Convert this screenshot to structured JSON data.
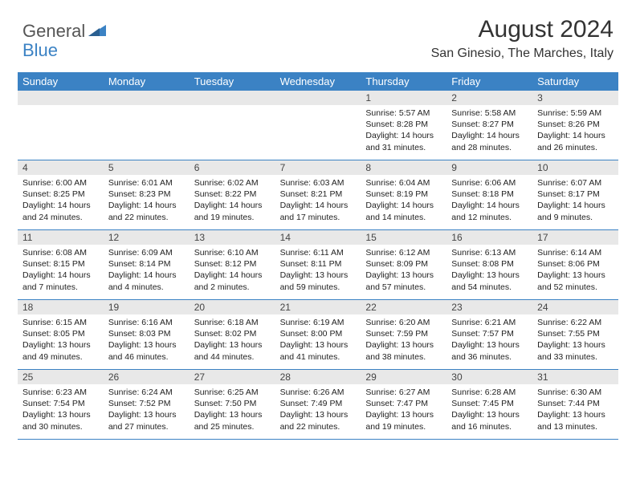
{
  "logo": {
    "general": "General",
    "blue": "Blue"
  },
  "title": "August 2024",
  "location": "San Ginesio, The Marches, Italy",
  "colors": {
    "header_bg": "#3b82c4",
    "daynum_bg": "#e8e8e8",
    "border": "#3b82c4",
    "text": "#222222",
    "title_text": "#333333"
  },
  "weekdays": [
    "Sunday",
    "Monday",
    "Tuesday",
    "Wednesday",
    "Thursday",
    "Friday",
    "Saturday"
  ],
  "weeks": [
    [
      {
        "n": "",
        "sr": "",
        "ss": "",
        "dl": ""
      },
      {
        "n": "",
        "sr": "",
        "ss": "",
        "dl": ""
      },
      {
        "n": "",
        "sr": "",
        "ss": "",
        "dl": ""
      },
      {
        "n": "",
        "sr": "",
        "ss": "",
        "dl": ""
      },
      {
        "n": "1",
        "sr": "Sunrise: 5:57 AM",
        "ss": "Sunset: 8:28 PM",
        "dl": "Daylight: 14 hours and 31 minutes."
      },
      {
        "n": "2",
        "sr": "Sunrise: 5:58 AM",
        "ss": "Sunset: 8:27 PM",
        "dl": "Daylight: 14 hours and 28 minutes."
      },
      {
        "n": "3",
        "sr": "Sunrise: 5:59 AM",
        "ss": "Sunset: 8:26 PM",
        "dl": "Daylight: 14 hours and 26 minutes."
      }
    ],
    [
      {
        "n": "4",
        "sr": "Sunrise: 6:00 AM",
        "ss": "Sunset: 8:25 PM",
        "dl": "Daylight: 14 hours and 24 minutes."
      },
      {
        "n": "5",
        "sr": "Sunrise: 6:01 AM",
        "ss": "Sunset: 8:23 PM",
        "dl": "Daylight: 14 hours and 22 minutes."
      },
      {
        "n": "6",
        "sr": "Sunrise: 6:02 AM",
        "ss": "Sunset: 8:22 PM",
        "dl": "Daylight: 14 hours and 19 minutes."
      },
      {
        "n": "7",
        "sr": "Sunrise: 6:03 AM",
        "ss": "Sunset: 8:21 PM",
        "dl": "Daylight: 14 hours and 17 minutes."
      },
      {
        "n": "8",
        "sr": "Sunrise: 6:04 AM",
        "ss": "Sunset: 8:19 PM",
        "dl": "Daylight: 14 hours and 14 minutes."
      },
      {
        "n": "9",
        "sr": "Sunrise: 6:06 AM",
        "ss": "Sunset: 8:18 PM",
        "dl": "Daylight: 14 hours and 12 minutes."
      },
      {
        "n": "10",
        "sr": "Sunrise: 6:07 AM",
        "ss": "Sunset: 8:17 PM",
        "dl": "Daylight: 14 hours and 9 minutes."
      }
    ],
    [
      {
        "n": "11",
        "sr": "Sunrise: 6:08 AM",
        "ss": "Sunset: 8:15 PM",
        "dl": "Daylight: 14 hours and 7 minutes."
      },
      {
        "n": "12",
        "sr": "Sunrise: 6:09 AM",
        "ss": "Sunset: 8:14 PM",
        "dl": "Daylight: 14 hours and 4 minutes."
      },
      {
        "n": "13",
        "sr": "Sunrise: 6:10 AM",
        "ss": "Sunset: 8:12 PM",
        "dl": "Daylight: 14 hours and 2 minutes."
      },
      {
        "n": "14",
        "sr": "Sunrise: 6:11 AM",
        "ss": "Sunset: 8:11 PM",
        "dl": "Daylight: 13 hours and 59 minutes."
      },
      {
        "n": "15",
        "sr": "Sunrise: 6:12 AM",
        "ss": "Sunset: 8:09 PM",
        "dl": "Daylight: 13 hours and 57 minutes."
      },
      {
        "n": "16",
        "sr": "Sunrise: 6:13 AM",
        "ss": "Sunset: 8:08 PM",
        "dl": "Daylight: 13 hours and 54 minutes."
      },
      {
        "n": "17",
        "sr": "Sunrise: 6:14 AM",
        "ss": "Sunset: 8:06 PM",
        "dl": "Daylight: 13 hours and 52 minutes."
      }
    ],
    [
      {
        "n": "18",
        "sr": "Sunrise: 6:15 AM",
        "ss": "Sunset: 8:05 PM",
        "dl": "Daylight: 13 hours and 49 minutes."
      },
      {
        "n": "19",
        "sr": "Sunrise: 6:16 AM",
        "ss": "Sunset: 8:03 PM",
        "dl": "Daylight: 13 hours and 46 minutes."
      },
      {
        "n": "20",
        "sr": "Sunrise: 6:18 AM",
        "ss": "Sunset: 8:02 PM",
        "dl": "Daylight: 13 hours and 44 minutes."
      },
      {
        "n": "21",
        "sr": "Sunrise: 6:19 AM",
        "ss": "Sunset: 8:00 PM",
        "dl": "Daylight: 13 hours and 41 minutes."
      },
      {
        "n": "22",
        "sr": "Sunrise: 6:20 AM",
        "ss": "Sunset: 7:59 PM",
        "dl": "Daylight: 13 hours and 38 minutes."
      },
      {
        "n": "23",
        "sr": "Sunrise: 6:21 AM",
        "ss": "Sunset: 7:57 PM",
        "dl": "Daylight: 13 hours and 36 minutes."
      },
      {
        "n": "24",
        "sr": "Sunrise: 6:22 AM",
        "ss": "Sunset: 7:55 PM",
        "dl": "Daylight: 13 hours and 33 minutes."
      }
    ],
    [
      {
        "n": "25",
        "sr": "Sunrise: 6:23 AM",
        "ss": "Sunset: 7:54 PM",
        "dl": "Daylight: 13 hours and 30 minutes."
      },
      {
        "n": "26",
        "sr": "Sunrise: 6:24 AM",
        "ss": "Sunset: 7:52 PM",
        "dl": "Daylight: 13 hours and 27 minutes."
      },
      {
        "n": "27",
        "sr": "Sunrise: 6:25 AM",
        "ss": "Sunset: 7:50 PM",
        "dl": "Daylight: 13 hours and 25 minutes."
      },
      {
        "n": "28",
        "sr": "Sunrise: 6:26 AM",
        "ss": "Sunset: 7:49 PM",
        "dl": "Daylight: 13 hours and 22 minutes."
      },
      {
        "n": "29",
        "sr": "Sunrise: 6:27 AM",
        "ss": "Sunset: 7:47 PM",
        "dl": "Daylight: 13 hours and 19 minutes."
      },
      {
        "n": "30",
        "sr": "Sunrise: 6:28 AM",
        "ss": "Sunset: 7:45 PM",
        "dl": "Daylight: 13 hours and 16 minutes."
      },
      {
        "n": "31",
        "sr": "Sunrise: 6:30 AM",
        "ss": "Sunset: 7:44 PM",
        "dl": "Daylight: 13 hours and 13 minutes."
      }
    ]
  ]
}
